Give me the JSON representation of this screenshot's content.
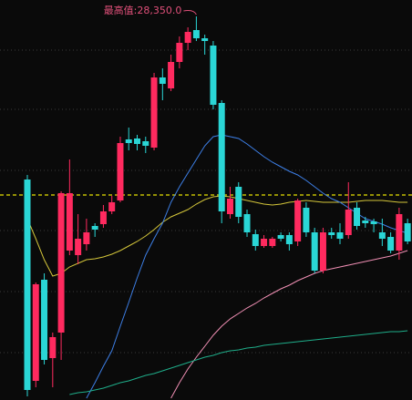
{
  "chart_data": {
    "type": "candlestick",
    "ylim": [
      24140,
      28530
    ],
    "reference_line": {
      "value": 26390,
      "color": "#e8e000"
    },
    "annotation": "最高值:28,350.0",
    "annotation_color": "#e0507a",
    "up_color": "#ff2a5f",
    "down_color": "#2ad6d6",
    "open": [
      26560,
      24350,
      25460,
      24600,
      24880,
      25780,
      25730,
      25850,
      26050,
      26070,
      26210,
      26330,
      27000,
      27010,
      26980,
      26910,
      27680,
      27560,
      27850,
      28060,
      28200,
      28110,
      28030,
      27400,
      26180,
      26480,
      26180,
      25960,
      25830,
      25830,
      25950,
      25950,
      25880,
      26250,
      25980,
      25560,
      25980,
      25980,
      25950,
      26250,
      26110,
      26100,
      25980,
      25930,
      25780,
      26080
    ],
    "high": [
      26610,
      25430,
      25530,
      24880,
      26430,
      26780,
      26180,
      26130,
      26080,
      26280,
      26380,
      27030,
      27130,
      27050,
      27030,
      27730,
      27780,
      27930,
      28130,
      28230,
      28350,
      28150,
      28080,
      27430,
      26480,
      26530,
      26230,
      26010,
      25950,
      25930,
      25980,
      25980,
      26350,
      26310,
      26030,
      26030,
      26030,
      26080,
      26530,
      26310,
      26150,
      26130,
      26130,
      25980,
      26250,
      26130
    ],
    "low": [
      24180,
      24280,
      24530,
      24280,
      24580,
      25730,
      25630,
      25780,
      25930,
      26030,
      26180,
      26310,
      26880,
      26880,
      26850,
      26880,
      27430,
      27530,
      27780,
      27980,
      28080,
      27930,
      27330,
      26080,
      26130,
      26080,
      25930,
      25780,
      25810,
      25810,
      25880,
      25780,
      25830,
      25930,
      25530,
      25530,
      25910,
      25850,
      25910,
      26010,
      26030,
      25980,
      25830,
      25750,
      25680,
      25850
    ],
    "close": [
      24250,
      25410,
      24580,
      24830,
      26410,
      26410,
      25910,
      25980,
      26010,
      26210,
      26310,
      26960,
      26960,
      26950,
      26930,
      27680,
      27610,
      27850,
      28060,
      28180,
      28110,
      28080,
      27380,
      26210,
      26350,
      26150,
      25980,
      25830,
      25910,
      25910,
      25910,
      25850,
      26330,
      25980,
      25560,
      25980,
      25950,
      25910,
      26230,
      26050,
      26080,
      26070,
      25910,
      25780,
      26180,
      25880
    ],
    "series": [
      {
        "color": "#d4c63a",
        "values": [
          26130,
          25910,
          25680,
          25500,
          25530,
          25600,
          25640,
          25680,
          25690,
          25710,
          25740,
          25780,
          25830,
          25880,
          25940,
          26010,
          26090,
          26150,
          26190,
          26230,
          26290,
          26340,
          26370,
          26380,
          26370,
          26350,
          26330,
          26310,
          26290,
          26280,
          26290,
          26310,
          26320,
          26330,
          26320,
          26310,
          26310,
          26310,
          26310,
          26320,
          26330,
          26330,
          26330,
          26320,
          26310,
          26310
        ]
      },
      {
        "color": "#3d7fe6",
        "values": [
          null,
          null,
          null,
          null,
          null,
          null,
          null,
          24160,
          24330,
          24510,
          24680,
          24950,
          25210,
          25480,
          25730,
          25910,
          26080,
          26310,
          26480,
          26630,
          26780,
          26930,
          27030,
          27050,
          27030,
          27010,
          26950,
          26880,
          26810,
          26750,
          26700,
          26650,
          26610,
          26550,
          26480,
          26410,
          26350,
          26310,
          26250,
          26190,
          26130,
          26100,
          26070,
          26030,
          26000,
          25970
        ]
      },
      {
        "color": "#f08fb4",
        "values": [
          null,
          null,
          null,
          null,
          null,
          null,
          null,
          null,
          null,
          null,
          null,
          null,
          null,
          null,
          null,
          null,
          null,
          24160,
          24330,
          24480,
          24610,
          24730,
          24850,
          24950,
          25030,
          25090,
          25150,
          25200,
          25260,
          25310,
          25360,
          25400,
          25450,
          25490,
          25530,
          25560,
          25580,
          25600,
          25620,
          25640,
          25660,
          25680,
          25700,
          25720,
          25750,
          25780
        ]
      },
      {
        "color": "#1fae8a",
        "values": [
          null,
          null,
          null,
          null,
          null,
          24200,
          24220,
          24230,
          24250,
          24270,
          24300,
          24330,
          24350,
          24380,
          24410,
          24430,
          24460,
          24490,
          24520,
          24550,
          24580,
          24610,
          24630,
          24660,
          24680,
          24690,
          24710,
          24720,
          24740,
          24750,
          24760,
          24770,
          24780,
          24790,
          24800,
          24810,
          24820,
          24830,
          24840,
          24850,
          24860,
          24870,
          24880,
          24890,
          24890,
          24900
        ]
      }
    ]
  }
}
